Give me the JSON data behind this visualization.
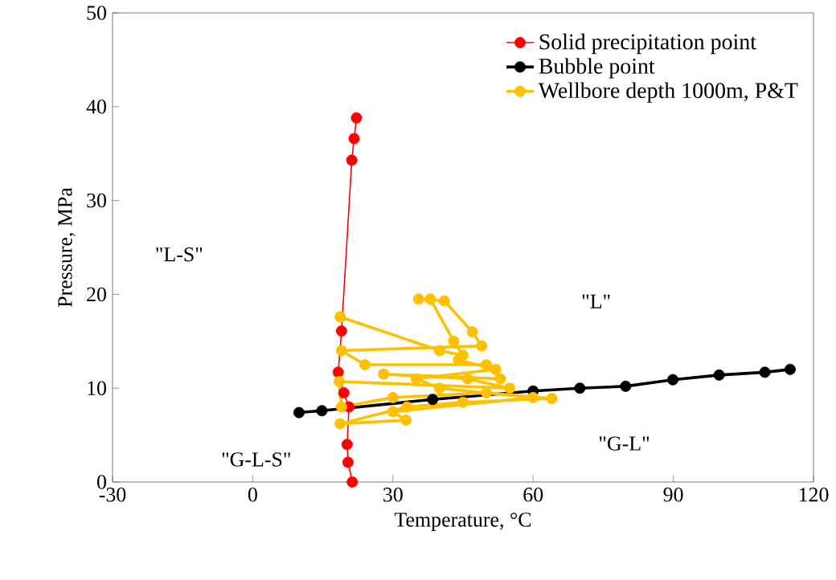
{
  "chart_data": {
    "type": "line",
    "xlabel": "Temperature, °C",
    "ylabel": "Pressure, MPa",
    "xlim": [
      -30,
      120
    ],
    "ylim": [
      0,
      50
    ],
    "xticks": [
      -30,
      0,
      30,
      60,
      90,
      120
    ],
    "yticks": [
      0,
      10,
      20,
      30,
      40,
      50
    ],
    "grid": false,
    "legend": "top right",
    "marker": "circle",
    "line_style": "solid",
    "series": [
      {
        "name": "Solid precipitation point",
        "color": "#ff0000",
        "x": [
          21.3,
          20.4,
          20.2,
          20.6,
          19.5,
          18.3,
          19.0,
          21.2,
          21.7,
          22.2
        ],
        "values": [
          0,
          2.1,
          4.0,
          8.0,
          9.5,
          11.7,
          16.1,
          34.3,
          36.6,
          38.8
        ]
      },
      {
        "name": "Bubble point",
        "color": "#000000",
        "x": [
          9.9,
          14.8,
          19.5,
          29.8,
          38.5,
          50,
          60,
          70,
          79.8,
          89.9,
          99.8,
          109.6,
          115
        ],
        "values": [
          7.4,
          7.6,
          null,
          null,
          8.8,
          null,
          9.7,
          10.0,
          10.2,
          10.9,
          11.4,
          11.7,
          12.0
        ]
      },
      {
        "name": "Wellbore depth 1000m, P&T",
        "color": "#ffc000",
        "x": [
          18.7,
          40,
          45,
          43,
          38,
          35.5,
          41,
          47,
          49,
          19,
          24,
          50,
          53,
          28,
          46,
          55,
          18.5,
          19,
          30,
          50,
          64,
          45,
          33,
          18.7,
          32.8,
          30,
          60,
          40,
          35,
          52,
          44
        ],
        "values": [
          17.6,
          14,
          13.5,
          15,
          19.5,
          19.5,
          19.3,
          16,
          14.5,
          14,
          12.5,
          12.5,
          11,
          11.5,
          11,
          10,
          10.7,
          8,
          9,
          9.5,
          8.9,
          8.5,
          8,
          6.2,
          6.6,
          7.5,
          9,
          10,
          11,
          12,
          13
        ]
      }
    ],
    "annotations": [
      "\"L-S\"",
      "\"L\"",
      "\"G-L\"",
      "\"G-L-S\""
    ]
  }
}
